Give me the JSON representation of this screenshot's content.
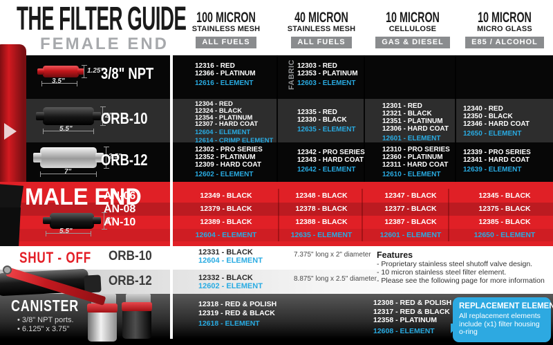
{
  "header": {
    "title": "THE FILTER GUIDE",
    "subtitle": "FEMALE END",
    "columns": [
      {
        "line1": "100 MICRON",
        "line2": "STAINLESS MESH",
        "badge": "ALL FUELS"
      },
      {
        "line1": "40 MICRON",
        "line2": "STAINLESS MESH",
        "badge": "ALL FUELS"
      },
      {
        "line1": "10 MICRON",
        "line2": "CELLULOSE",
        "badge": "GAS & DIESEL"
      },
      {
        "line1": "10 MICRON",
        "line2": "MICRO GLASS",
        "badge": "E85 / ALCOHOL"
      }
    ]
  },
  "female": {
    "rows": [
      {
        "label": "3/8\" NPT",
        "dim_h": "1.25\"",
        "dim_w": "3.5\"",
        "note": "FABRIC",
        "cells": [
          [
            {
              "t": "12316 - RED"
            },
            {
              "t": "12366 - PLATINUM"
            },
            {
              "t": "12616 - ELEMENT",
              "e": true
            }
          ],
          [
            {
              "t": "12303 - RED"
            },
            {
              "t": "12353 - PLATINUM"
            },
            {
              "t": "12603 - ELEMENT",
              "e": true
            }
          ],
          [],
          []
        ]
      },
      {
        "label": "ORB-10",
        "dim_h": "2\"",
        "dim_w": "5.5\"",
        "cells": [
          [
            {
              "t": "12304 - RED"
            },
            {
              "t": "12324 - BLACK"
            },
            {
              "t": "12354 - PLATINUM"
            },
            {
              "t": "12307 - HARD COAT"
            },
            {
              "t": "12604 - ELEMENT",
              "e": true
            },
            {
              "t": "12614 - CRIMP ELEMENT",
              "e": true
            }
          ],
          [
            {
              "t": "12335 - RED"
            },
            {
              "t": "12330 - BLACK"
            },
            {
              "t": "12635 - ELEMENT",
              "e": true
            }
          ],
          [
            {
              "t": "12301 - RED"
            },
            {
              "t": "12321 - BLACK"
            },
            {
              "t": "12351 - PLATINUM"
            },
            {
              "t": "12306 - HARD COAT"
            },
            {
              "t": "12601 - ELEMENT",
              "e": true
            }
          ],
          [
            {
              "t": "12340 - RED"
            },
            {
              "t": "12350 - BLACK"
            },
            {
              "t": "12346 - HARD COAT"
            },
            {
              "t": "12650 - ELEMENT",
              "e": true
            }
          ]
        ]
      },
      {
        "label": "ORB-12",
        "dim_h": "2.5\"",
        "dim_w": "7\"",
        "cells": [
          [
            {
              "t": "12302 - PRO SERIES"
            },
            {
              "t": "12352 - PLATINUM"
            },
            {
              "t": "12309 - HARD COAT"
            },
            {
              "t": "12602 - ELEMENT",
              "e": true
            }
          ],
          [
            {
              "t": "12342 - PRO SERIES"
            },
            {
              "t": "12343 - HARD COAT"
            },
            {
              "t": "12642 - ELEMENT",
              "e": true
            }
          ],
          [
            {
              "t": "12310 - PRO SERIES"
            },
            {
              "t": "12360 - PLATINUM"
            },
            {
              "t": "12311 - HARD COAT"
            },
            {
              "t": "12610 - ELEMENT",
              "e": true
            }
          ],
          [
            {
              "t": "12339 - PRO SERIES"
            },
            {
              "t": "12341 - HARD COAT"
            },
            {
              "t": "12639 - ELEMENT",
              "e": true
            }
          ]
        ]
      }
    ]
  },
  "male": {
    "title": "MALE END",
    "dim_h": "2\"",
    "dim_w": "5.5\"",
    "rows": [
      {
        "label": "AN-06",
        "cells": [
          "12349 - BLACK",
          "12348 - BLACK",
          "12347 - BLACK",
          "12345 - BLACK"
        ]
      },
      {
        "label": "AN-08",
        "cells": [
          "12379 - BLACK",
          "12378 - BLACK",
          "12377 - BLACK",
          "12375 - BLACK"
        ]
      },
      {
        "label": "AN-10",
        "cells": [
          "12389 - BLACK",
          "12388 - BLACK",
          "12387 - BLACK",
          "12385 - BLACK"
        ]
      }
    ],
    "elements": [
      "12604 - ELEMENT",
      "12635 - ELEMENT",
      "12601 - ELEMENT",
      "12650 - ELEMENT"
    ]
  },
  "shutoff": {
    "title": "SHUT - OFF",
    "rows": [
      {
        "label": "ORB-10",
        "part": "12331 - BLACK",
        "element": "12604 - ELEMENT",
        "dim": "7.375\" long x 2\" diameter"
      },
      {
        "label": "ORB-12",
        "part": "12332 - BLACK",
        "element": "12602 - ELEMENT",
        "dim": "8.875\" long x 2.5\" diameter"
      }
    ],
    "features_title": "Features",
    "features": [
      "- Proprietary stainless steel shutoff valve design.",
      "- 10 micron stainless steel filter element.",
      "- Please see the following page for more information"
    ]
  },
  "canister": {
    "title": "CANISTER",
    "bullets": [
      "• 3/8\" NPT ports.",
      "• 6.125\" x 3.75\""
    ],
    "col1": [
      {
        "t": "12318 - RED & POLISH"
      },
      {
        "t": "12319 - RED & BLACK"
      },
      {
        "t": "12618 - ELEMENT",
        "e": true
      }
    ],
    "col3": [
      {
        "t": "12308 - RED & POLISH"
      },
      {
        "t": "12317 - RED & BLACK"
      },
      {
        "t": "12358 - PLATINUM"
      },
      {
        "t": "12608 - ELEMENT",
        "e": true
      }
    ],
    "callout_title": "REPLACEMENT ELEMENTS",
    "callout_body": "All replacement elements include (x1) filter housing o-ring"
  },
  "colors": {
    "accent_blue": "#29abe2",
    "red_bright": "#e02026",
    "red_dark": "#bc1b21",
    "red_mid": "#cf1d23",
    "badge_gray": "#8a8c8e",
    "subtitle_gray": "#a7a9ac",
    "row_black": "#070707",
    "row_gray": "#2d2d2d"
  }
}
